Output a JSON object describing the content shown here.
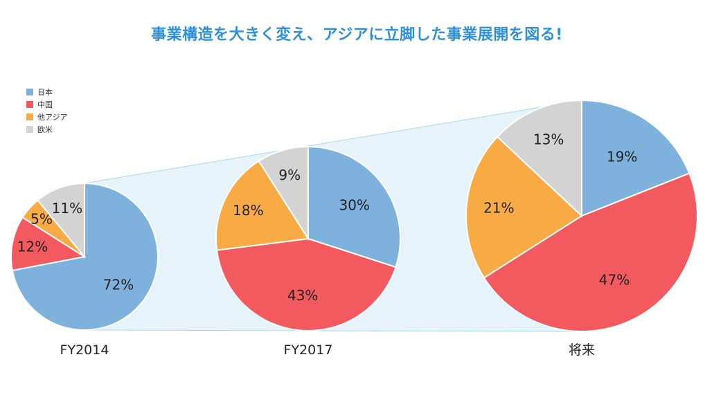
{
  "title": "事業構造を大きく変え、アジアに立脚した事業展開を図る!",
  "colors": {
    "japan": "#7eb1dc",
    "china": "#f25a5f",
    "other_asia": "#f8ab45",
    "west": "#d3d3d3",
    "band": "#e6f3fa",
    "band_edge": "#a8d6ee"
  },
  "chart_data": {
    "type": "pie",
    "legend": [
      "日本",
      "中国",
      "他アジア",
      "欧米"
    ],
    "legend_placement": "top-left",
    "pies": [
      {
        "label": "FY2014",
        "values": [
          72,
          12,
          5,
          11
        ],
        "value_labels": [
          "72%",
          "12%",
          "5%",
          "11%"
        ]
      },
      {
        "label": "FY2017",
        "values": [
          30,
          43,
          18,
          9
        ],
        "value_labels": [
          "30%",
          "43%",
          "18%",
          "9%"
        ]
      },
      {
        "label": "将来",
        "values": [
          19,
          47,
          21,
          13
        ],
        "value_labels": [
          "19%",
          "47%",
          "21%",
          "13%"
        ]
      }
    ]
  }
}
